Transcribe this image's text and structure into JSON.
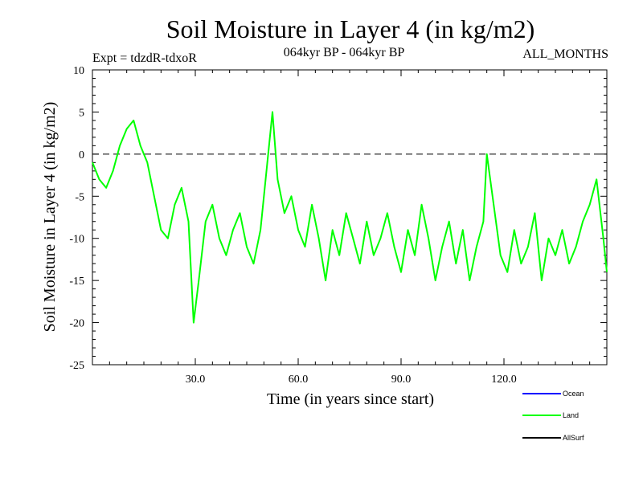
{
  "chart_data": {
    "type": "line",
    "title": "Soil Moisture in Layer 4 (in kg/m2)",
    "subtitle_left": "Expt = tdzdR-tdxoR",
    "subtitle_center": "064kyr BP - 064kyr BP",
    "subtitle_right": "ALL_MONTHS",
    "xlabel": "Time (in years since start)",
    "ylabel": "Soil Moisture in Layer 4 (in kg/m2)",
    "xlim": [
      0,
      150
    ],
    "ylim": [
      -25,
      10
    ],
    "x_ticks": [
      30,
      60,
      90,
      120
    ],
    "x_tick_labels": [
      "30.0",
      "60.0",
      "90.0",
      "120.0"
    ],
    "y_ticks": [
      10,
      5,
      0,
      -5,
      -10,
      -15,
      -20,
      -25
    ],
    "y_tick_labels": [
      "10",
      "5",
      "0",
      "-5",
      "-10",
      "-15",
      "-20",
      "-25"
    ],
    "reference_line": 0,
    "series": [
      {
        "name": "Land",
        "color": "#00ff00",
        "x": [
          0,
          2,
          4,
          6,
          8,
          10,
          12,
          14,
          16,
          18,
          20,
          22,
          24,
          26,
          28,
          29.5,
          31,
          33,
          35,
          37,
          39,
          41,
          43,
          45,
          47,
          49,
          51,
          52.5,
          54,
          56,
          58,
          60,
          62,
          64,
          66,
          68,
          70,
          72,
          74,
          76,
          78,
          80,
          82,
          84,
          86,
          88,
          90,
          92,
          94,
          96,
          98,
          100,
          102,
          104,
          106,
          108,
          110,
          112,
          114,
          115,
          117,
          119,
          121,
          123,
          125,
          127,
          129,
          131,
          133,
          135,
          137,
          139,
          141,
          143,
          145,
          147,
          149,
          150
        ],
        "values": [
          -1,
          -3,
          -4,
          -2,
          1,
          3,
          4,
          1,
          -1,
          -5,
          -9,
          -10,
          -6,
          -4,
          -8,
          -20,
          -15,
          -8,
          -6,
          -10,
          -12,
          -9,
          -7,
          -11,
          -13,
          -9,
          -1,
          5,
          -3,
          -7,
          -5,
          -9,
          -11,
          -6,
          -10,
          -15,
          -9,
          -12,
          -7,
          -10,
          -13,
          -8,
          -12,
          -10,
          -7,
          -11,
          -14,
          -9,
          -12,
          -6,
          -10,
          -15,
          -11,
          -8,
          -13,
          -9,
          -15,
          -11,
          -8,
          0,
          -6,
          -12,
          -14,
          -9,
          -13,
          -11,
          -7,
          -15,
          -10,
          -12,
          -9,
          -13,
          -11,
          -8,
          -6,
          -3,
          -10,
          -14
        ]
      }
    ],
    "legend": [
      {
        "name": "Ocean",
        "color": "#0000ff"
      },
      {
        "name": "Land",
        "color": "#00ff00"
      },
      {
        "name": "AllSurf",
        "color": "#000000"
      }
    ]
  }
}
